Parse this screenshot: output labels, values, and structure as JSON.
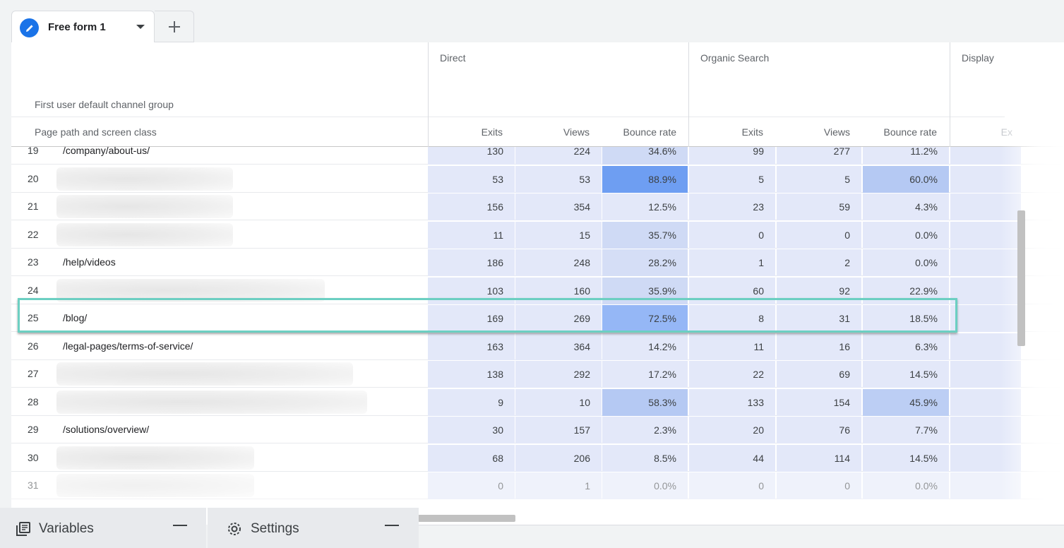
{
  "tabs": {
    "active_label": "Free form 1"
  },
  "header": {
    "dimension_row": "First user default channel group",
    "dimension_col": "Page path and screen class",
    "groups": [
      {
        "name": "Direct",
        "metrics": [
          "Exits",
          "Views",
          "Bounce rate"
        ]
      },
      {
        "name": "Organic Search",
        "metrics": [
          "Exits",
          "Views",
          "Bounce rate"
        ]
      },
      {
        "name": "Display",
        "metrics": [
          "Ex"
        ]
      }
    ]
  },
  "rows": [
    {
      "num": "19",
      "path": "/company/about-us/",
      "redacted": false,
      "direct": [
        "130",
        "224",
        "34.6%"
      ],
      "organic": [
        "99",
        "277",
        "11.2%"
      ]
    },
    {
      "num": "20",
      "path": "",
      "redacted": true,
      "direct": [
        "53",
        "53",
        "88.9%"
      ],
      "organic": [
        "5",
        "5",
        "60.0%"
      ]
    },
    {
      "num": "21",
      "path": "",
      "redacted": true,
      "direct": [
        "156",
        "354",
        "12.5%"
      ],
      "organic": [
        "23",
        "59",
        "4.3%"
      ]
    },
    {
      "num": "22",
      "path": "",
      "redacted": true,
      "direct": [
        "11",
        "15",
        "35.7%"
      ],
      "organic": [
        "0",
        "0",
        "0.0%"
      ]
    },
    {
      "num": "23",
      "path": "/help/videos",
      "redacted": false,
      "direct": [
        "186",
        "248",
        "28.2%"
      ],
      "organic": [
        "1",
        "2",
        "0.0%"
      ]
    },
    {
      "num": "24",
      "path": "",
      "redacted": true,
      "direct": [
        "103",
        "160",
        "35.9%"
      ],
      "organic": [
        "60",
        "92",
        "22.9%"
      ]
    },
    {
      "num": "25",
      "path": "/blog/",
      "redacted": false,
      "direct": [
        "169",
        "269",
        "72.5%"
      ],
      "organic": [
        "8",
        "31",
        "18.5%"
      ]
    },
    {
      "num": "26",
      "path": "/legal-pages/terms-of-service/",
      "redacted": false,
      "direct": [
        "163",
        "364",
        "14.2%"
      ],
      "organic": [
        "11",
        "16",
        "6.3%"
      ]
    },
    {
      "num": "27",
      "path": "",
      "redacted": true,
      "direct": [
        "138",
        "292",
        "17.2%"
      ],
      "organic": [
        "22",
        "69",
        "14.5%"
      ]
    },
    {
      "num": "28",
      "path": "",
      "redacted": true,
      "direct": [
        "9",
        "10",
        "58.3%"
      ],
      "organic": [
        "133",
        "154",
        "45.9%"
      ]
    },
    {
      "num": "29",
      "path": "/solutions/overview/",
      "redacted": false,
      "direct": [
        "30",
        "157",
        "2.3%"
      ],
      "organic": [
        "20",
        "76",
        "7.7%"
      ]
    },
    {
      "num": "30",
      "path": "",
      "redacted": true,
      "direct": [
        "68",
        "206",
        "8.5%"
      ],
      "organic": [
        "44",
        "114",
        "14.5%"
      ]
    },
    {
      "num": "31",
      "path": "",
      "redacted": true,
      "direct": [
        "0",
        "1",
        "0.0%"
      ],
      "organic": [
        "0",
        "0",
        "0.0%"
      ]
    }
  ],
  "highlighted_row": "25",
  "bottom_panels": {
    "variables_label": "Variables",
    "settings_label": "Settings"
  },
  "colors": {
    "accent": "#1a73e8",
    "highlight_border": "#6ccfc2",
    "heat_base": "#e3e8f9"
  }
}
